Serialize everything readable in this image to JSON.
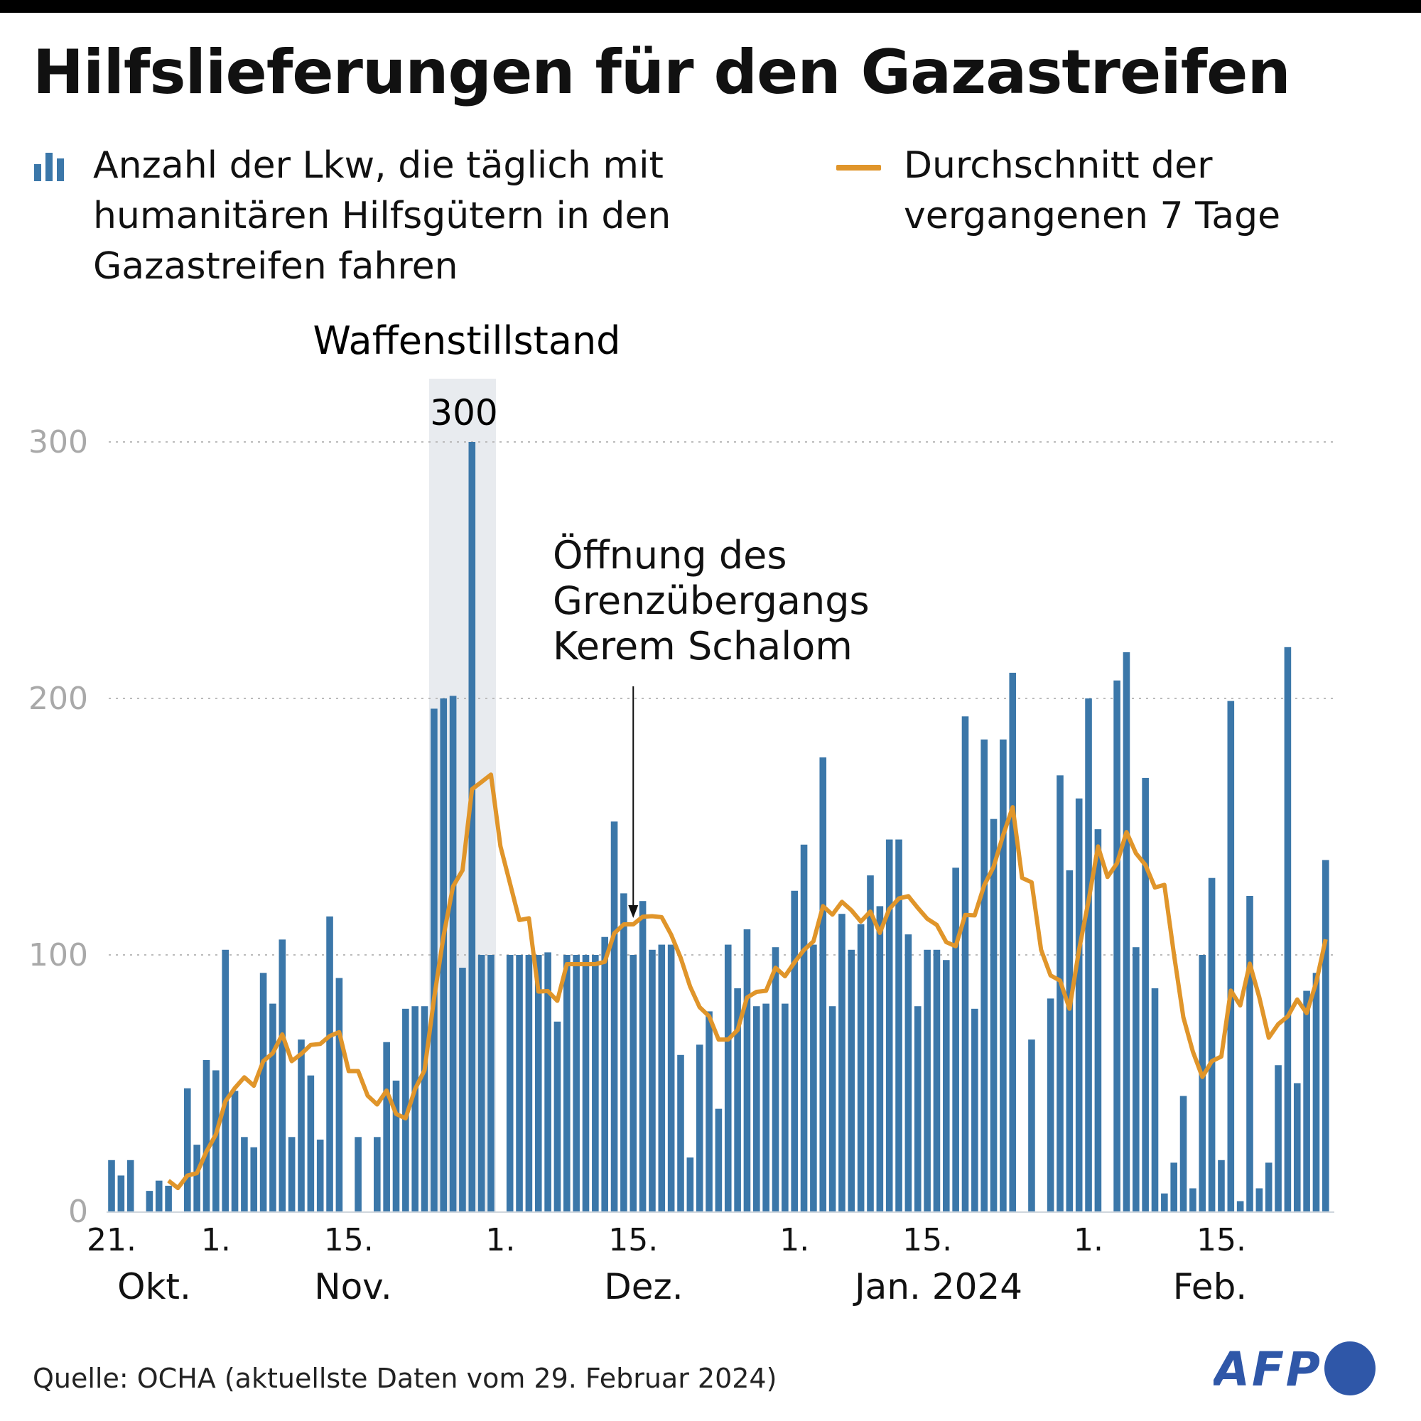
{
  "title": "Hilfslieferungen für den Gazastreifen",
  "legend": {
    "bars": "Anzahl der Lkw, die täglich mit\nhumanitären Hilfsgütern in den\nGazastreifen fahren",
    "line": "Durchschnitt der\nvergangenen 7 Tage"
  },
  "annotations": {
    "ceasefire": "Waffenstillstand",
    "peak_label": "300",
    "crossing": [
      "Öffnung des",
      "Grenzübergangs",
      "Kerem Schalom"
    ]
  },
  "source": "Quelle: OCHA (aktuellste Daten vom 29. Februar 2024)",
  "logo": "AFP",
  "colors": {
    "bars": "#3b77a9",
    "line": "#e0952a",
    "shade": "#e8ebef",
    "grid": "#bbbbbb"
  },
  "chart_data": {
    "type": "bar",
    "title": "Hilfslieferungen für den Gazastreifen",
    "ylim": [
      0,
      300
    ],
    "y_ticks": [
      "0",
      "100",
      "200",
      "300"
    ],
    "grid": true,
    "x_ticks": [
      {
        "date": "2023-10-21",
        "label": "21."
      },
      {
        "date": "2023-11-01",
        "label": "1."
      },
      {
        "date": "2023-11-15",
        "label": "15."
      },
      {
        "date": "2023-12-01",
        "label": "1."
      },
      {
        "date": "2023-12-15",
        "label": "15."
      },
      {
        "date": "2024-01-01",
        "label": "1."
      },
      {
        "date": "2024-01-15",
        "label": "15."
      },
      {
        "date": "2024-02-01",
        "label": "1."
      },
      {
        "date": "2024-02-15",
        "label": "15."
      }
    ],
    "month_labels": [
      "Okt.",
      "Nov.",
      "Dez.",
      "Jan. 2024",
      "Feb."
    ],
    "ceasefire_period": [
      "2023-11-24",
      "2023-11-30"
    ],
    "crossing_opening_date": "2023-12-15",
    "months": [
      {
        "month": "2023-10",
        "first_day": 21,
        "trucks": [
          20,
          14,
          20,
          0,
          8,
          12,
          10,
          0,
          48,
          26,
          59
        ],
        "avg7": [
          null,
          null,
          null,
          null,
          null,
          null,
          12.0,
          9.1,
          14.0,
          14.9,
          23.3
        ]
      },
      {
        "month": "2023-11",
        "first_day": 1,
        "trucks": [
          55,
          102,
          47,
          29,
          25,
          93,
          81,
          106,
          29,
          67,
          53,
          28,
          115,
          91,
          0,
          29,
          0,
          29,
          66,
          51,
          79,
          80,
          80,
          196,
          200,
          201,
          95,
          300,
          100,
          100
        ],
        "avg7": [
          30.0,
          42.9,
          48.1,
          52.3,
          49.0,
          58.6,
          61.7,
          69.0,
          58.6,
          61.4,
          64.9,
          65.3,
          68.4,
          69.9,
          54.7,
          54.7,
          45.1,
          41.7,
          47.1,
          38.0,
          36.3,
          47.7,
          55.0,
          83.0,
          107.4,
          126.7,
          133.0,
          164.6,
          167.4,
          170.3
        ]
      },
      {
        "month": "2023-12",
        "first_day": 1,
        "trucks": [
          0,
          100,
          100,
          100,
          100,
          101,
          74,
          100,
          100,
          100,
          100,
          107,
          152,
          124,
          100,
          121,
          102,
          104,
          104,
          61,
          21,
          65,
          78,
          40,
          104,
          87,
          110,
          80,
          81,
          103,
          81
        ],
        "avg7": [
          142.3,
          128.0,
          113.6,
          114.3,
          85.7,
          85.9,
          82.1,
          96.4,
          96.4,
          96.4,
          96.4,
          97.3,
          108.4,
          111.9,
          111.9,
          114.9,
          115.1,
          114.7,
          107.9,
          98.9,
          87.6,
          79.6,
          76.1,
          67.0,
          67.0,
          70.7,
          83.4,
          85.6,
          86.0,
          95.0,
          91.7
        ]
      },
      {
        "month": "2024-01",
        "first_day": 1,
        "trucks": [
          125,
          143,
          104,
          177,
          80,
          116,
          102,
          112,
          131,
          119,
          145,
          145,
          108,
          80,
          102,
          102,
          98,
          134,
          193,
          79,
          184,
          153,
          184,
          210,
          0,
          67,
          0,
          83,
          170,
          133,
          161
        ],
        "avg7": [
          97.1,
          101.9,
          105.3,
          119.0,
          115.7,
          120.7,
          117.4,
          113.0,
          116.9,
          108.6,
          117.9,
          122.0,
          122.9,
          118.3,
          114.1,
          111.7,
          105.0,
          103.4,
          115.6,
          115.4,
          127.1,
          134.4,
          146.7,
          157.6,
          130.0,
          128.3,
          102.0,
          92.0,
          90.0,
          79.0,
          102.0
        ]
      },
      {
        "month": "2024-02",
        "first_day": 1,
        "trucks": [
          200,
          149,
          0,
          207,
          218,
          103,
          169,
          87,
          7,
          19,
          45,
          9,
          100,
          130,
          20,
          199,
          4,
          123,
          9,
          19,
          57,
          220,
          50,
          86,
          93,
          137
        ],
        "avg7": [
          121.0,
          142.3,
          130.4,
          135.7,
          147.9,
          139.6,
          135.1,
          126.3,
          127.3,
          100.4,
          75.7,
          62.3,
          52.4,
          58.6,
          60.4,
          86.1,
          80.3,
          96.6,
          83.6,
          67.7,
          73.0,
          76.0,
          82.6,
          77.3,
          89.3,
          106.1
        ]
      }
    ]
  }
}
